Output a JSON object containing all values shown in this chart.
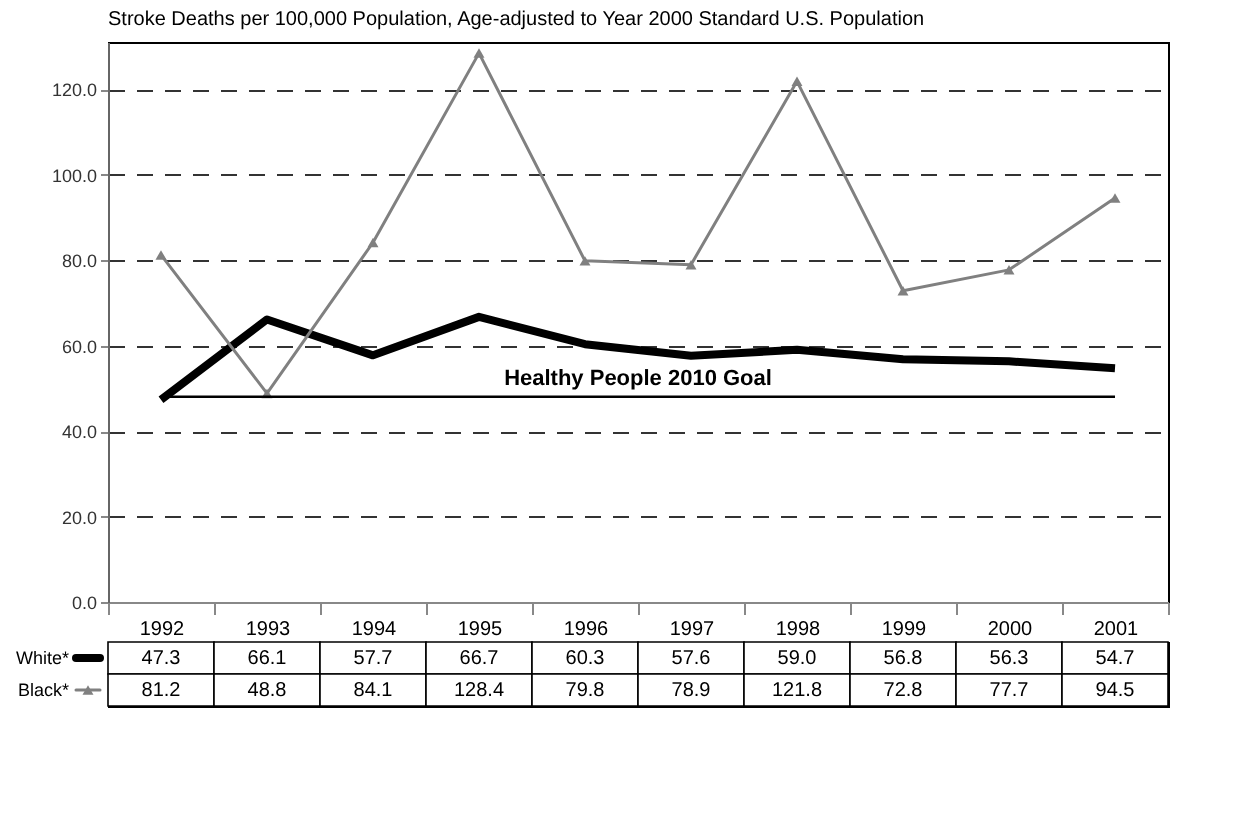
{
  "chart_data": {
    "type": "line",
    "title": "Stroke Deaths per 100,000 Population, Age-adjusted to Year 2000 Standard U.S. Population",
    "categories": [
      "1992",
      "1993",
      "1994",
      "1995",
      "1996",
      "1997",
      "1998",
      "1999",
      "2000",
      "2001"
    ],
    "series": [
      {
        "name": "White*",
        "color": "#000000",
        "marker": "none",
        "values": [
          47.3,
          66.1,
          57.7,
          66.7,
          60.3,
          57.6,
          59.0,
          56.8,
          56.3,
          54.7
        ],
        "value_labels": [
          "47.3",
          "66.1",
          "57.7",
          "66.7",
          "60.3",
          "57.6",
          "59.0",
          "56.8",
          "56.3",
          "54.7"
        ]
      },
      {
        "name": "Black*",
        "color": "#808080",
        "marker": "triangle",
        "values": [
          81.2,
          48.8,
          84.1,
          128.4,
          79.8,
          78.9,
          121.8,
          72.8,
          77.7,
          94.5
        ],
        "value_labels": [
          "81.2",
          "48.8",
          "84.1",
          "128.4",
          "79.8",
          "78.9",
          "121.8",
          "72.8",
          "77.7",
          "94.5"
        ]
      }
    ],
    "ylim": [
      0,
      131
    ],
    "yticks": [
      {
        "value": 0,
        "label": "0.0"
      },
      {
        "value": 20,
        "label": "20.0"
      },
      {
        "value": 40,
        "label": "40.0"
      },
      {
        "value": 60,
        "label": "60.0"
      },
      {
        "value": 80,
        "label": "80.0"
      },
      {
        "value": 100,
        "label": "100.0"
      },
      {
        "value": 120,
        "label": "120.0"
      }
    ],
    "grid": "y",
    "ref_lines": [
      {
        "axis": "y",
        "value": 48,
        "label": "Healthy People 2010 Goal",
        "color": "#000000"
      }
    ],
    "legend": "bottom left"
  }
}
